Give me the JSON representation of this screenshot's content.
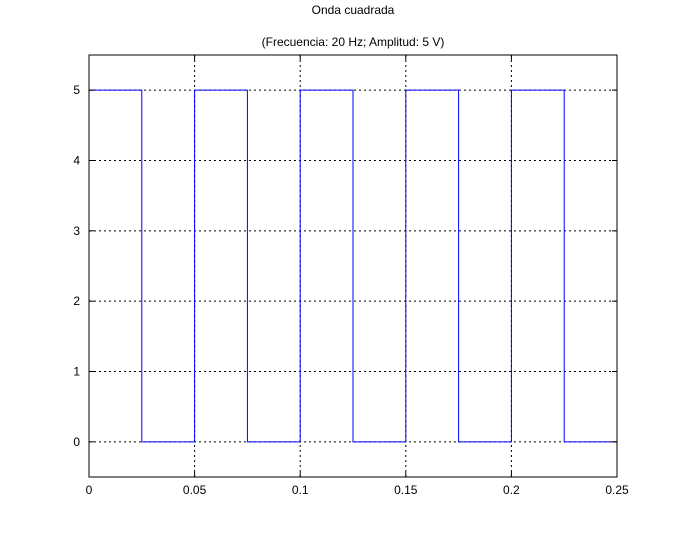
{
  "chart_data": {
    "type": "line",
    "title": "Onda cuadrada",
    "subtitle": "(Frecuencia: 20 Hz; Amplitud:  5 V)",
    "xlabel": "",
    "ylabel": "",
    "xlim": [
      0,
      0.25
    ],
    "ylim": [
      -0.5,
      5.5
    ],
    "grid": true,
    "line_color": "#0000ff",
    "x_ticks": [
      0,
      0.05,
      0.1,
      0.15,
      0.2,
      0.25
    ],
    "x_tick_labels": [
      "0",
      "0.05",
      "0.1",
      "0.15",
      "0.2",
      "0.25"
    ],
    "y_ticks": [
      0,
      1,
      2,
      3,
      4,
      5
    ],
    "y_tick_labels": [
      "0",
      "1",
      "2",
      "3",
      "4",
      "5"
    ],
    "series": [
      {
        "x": [
          0,
          0.025,
          0.025,
          0.05,
          0.05,
          0.075,
          0.075,
          0.1,
          0.1,
          0.1,
          0.1,
          0.125,
          0.125,
          0.125,
          0.15,
          0.15,
          0.175,
          0.175,
          0.2,
          0.2,
          0.225,
          0.225,
          0.225,
          0.25,
          0.25
        ],
        "y": [
          5,
          5,
          0,
          0,
          5,
          5,
          0,
          0,
          2.5,
          0,
          5,
          5,
          2.5,
          0,
          0,
          5,
          5,
          0,
          0,
          5,
          5,
          2.5,
          0,
          0,
          2.5
        ]
      }
    ]
  }
}
